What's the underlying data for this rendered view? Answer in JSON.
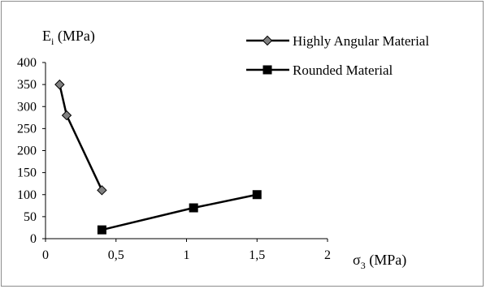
{
  "chart_data": {
    "type": "line",
    "ylabel": {
      "base": "E",
      "sub": "i",
      "rest": " (MPa)"
    },
    "xlabel": {
      "base": "σ",
      "sub": "3",
      "rest": " (MPa)"
    },
    "xlim": [
      0,
      2
    ],
    "ylim": [
      0,
      400
    ],
    "x_ticks": [
      {
        "value": 0,
        "label": "0"
      },
      {
        "value": 0.5,
        "label": "0,5"
      },
      {
        "value": 1,
        "label": "1"
      },
      {
        "value": 1.5,
        "label": "1,5"
      },
      {
        "value": 2,
        "label": "2"
      }
    ],
    "y_ticks": [
      {
        "value": 0,
        "label": "0"
      },
      {
        "value": 50,
        "label": "50"
      },
      {
        "value": 100,
        "label": "100"
      },
      {
        "value": 150,
        "label": "150"
      },
      {
        "value": 200,
        "label": "200"
      },
      {
        "value": 250,
        "label": "250"
      },
      {
        "value": 300,
        "label": "300"
      },
      {
        "value": 350,
        "label": "350"
      },
      {
        "value": 400,
        "label": "400"
      }
    ],
    "grid": false,
    "legend_position": "top-right",
    "series": [
      {
        "name": "Highly Angular Material",
        "marker": "diamond",
        "line_color": "#000000",
        "marker_fill": "#808080",
        "points": [
          {
            "x": 0.1,
            "y": 350
          },
          {
            "x": 0.15,
            "y": 280
          },
          {
            "x": 0.4,
            "y": 110
          }
        ]
      },
      {
        "name": "Rounded Material",
        "marker": "square",
        "line_color": "#000000",
        "marker_fill": "#000000",
        "points": [
          {
            "x": 0.4,
            "y": 20
          },
          {
            "x": 1.05,
            "y": 70
          },
          {
            "x": 1.5,
            "y": 100
          }
        ]
      }
    ]
  }
}
